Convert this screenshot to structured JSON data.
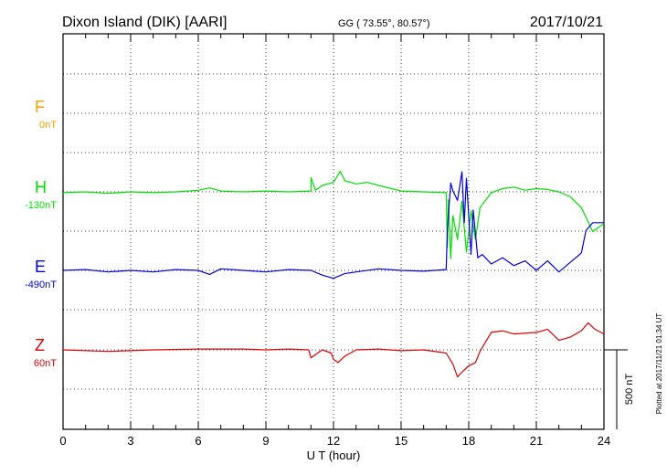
{
  "header": {
    "station": "Dixon Island (DIK)  [AARI]",
    "coords": "GG ( 73.55°,  80.57°)",
    "date": "2017/10/21"
  },
  "footer_note": "Plotted at 2017/11/21 01:34 UT",
  "scale_bar_label": "500 nT",
  "colors": {
    "F": "#f0a000",
    "H": "#00e000",
    "E": "#0000dd",
    "Z": "#e00000",
    "frame": "#000000"
  },
  "chart_data": {
    "type": "line",
    "title": "Dixon Island (DIK)  [AARI]",
    "xlabel": "U T (hour)",
    "xlim": [
      0,
      24
    ],
    "x_ticks": [
      "0",
      "3",
      "6",
      "9",
      "12",
      "15",
      "18",
      "21",
      "24"
    ],
    "nT_per_division": 500,
    "series": [
      {
        "name": "F",
        "baseline_label": "0nT",
        "x": [],
        "y": []
      },
      {
        "name": "H",
        "baseline_label": "-130nT",
        "x": [
          0,
          1,
          2,
          3,
          4,
          5,
          6,
          6.5,
          7,
          8,
          9,
          10,
          11,
          11,
          11.2,
          11.5,
          12,
          12.3,
          12.5,
          13,
          13.5,
          14,
          15,
          16,
          17,
          17.05,
          17.1,
          17.2,
          17.3,
          17.5,
          17.7,
          17.9,
          18.1,
          18.3,
          18.5,
          19,
          19.5,
          20,
          20.5,
          21,
          21.5,
          22,
          22.5,
          23,
          23.5,
          24
        ],
        "y": [
          -5,
          0,
          -10,
          0,
          -5,
          0,
          10,
          25,
          5,
          0,
          5,
          0,
          5,
          90,
          10,
          40,
          60,
          130,
          70,
          50,
          60,
          40,
          5,
          0,
          -5,
          -350,
          -50,
          -420,
          -150,
          -300,
          -60,
          -380,
          -120,
          -300,
          -100,
          -5,
          20,
          30,
          10,
          20,
          15,
          0,
          -30,
          -100,
          -250,
          -200
        ]
      },
      {
        "name": "E",
        "baseline_label": "-490nT",
        "x": [
          0,
          1,
          2,
          3,
          4,
          5,
          6,
          6.5,
          7,
          8,
          9,
          10,
          11,
          11.5,
          12,
          12.5,
          13,
          14,
          15,
          16,
          17,
          17.05,
          17.2,
          17.3,
          17.5,
          17.7,
          17.8,
          17.9,
          18.1,
          18.2,
          18.4,
          18.6,
          19,
          19.5,
          20,
          20.5,
          21,
          21.5,
          22,
          22.5,
          23,
          23.2,
          23.5,
          24
        ],
        "y": [
          0,
          5,
          -10,
          0,
          -10,
          5,
          0,
          -25,
          10,
          0,
          -10,
          5,
          0,
          -30,
          -50,
          -20,
          -10,
          10,
          0,
          -5,
          5,
          250,
          550,
          500,
          440,
          620,
          300,
          580,
          100,
          380,
          80,
          100,
          40,
          80,
          30,
          60,
          0,
          60,
          -10,
          50,
          110,
          250,
          300,
          300
        ]
      },
      {
        "name": "Z",
        "baseline_label": "60nT",
        "x": [
          0,
          2,
          4,
          6,
          8,
          9,
          10,
          10.9,
          11,
          11.5,
          11.9,
          12,
          12.2,
          12.5,
          13,
          14,
          15,
          16,
          17,
          17.3,
          17.5,
          17.7,
          18,
          18.3,
          18.5,
          19,
          19.5,
          20,
          21,
          21.5,
          22,
          22.5,
          23,
          23.3,
          23.6,
          24
        ],
        "y": [
          0,
          -10,
          0,
          5,
          5,
          0,
          5,
          0,
          -50,
          0,
          -20,
          -60,
          -80,
          -40,
          0,
          5,
          -5,
          0,
          -20,
          -90,
          -170,
          -140,
          -100,
          -80,
          -10,
          110,
          120,
          100,
          110,
          130,
          60,
          80,
          120,
          170,
          130,
          100
        ]
      }
    ]
  }
}
